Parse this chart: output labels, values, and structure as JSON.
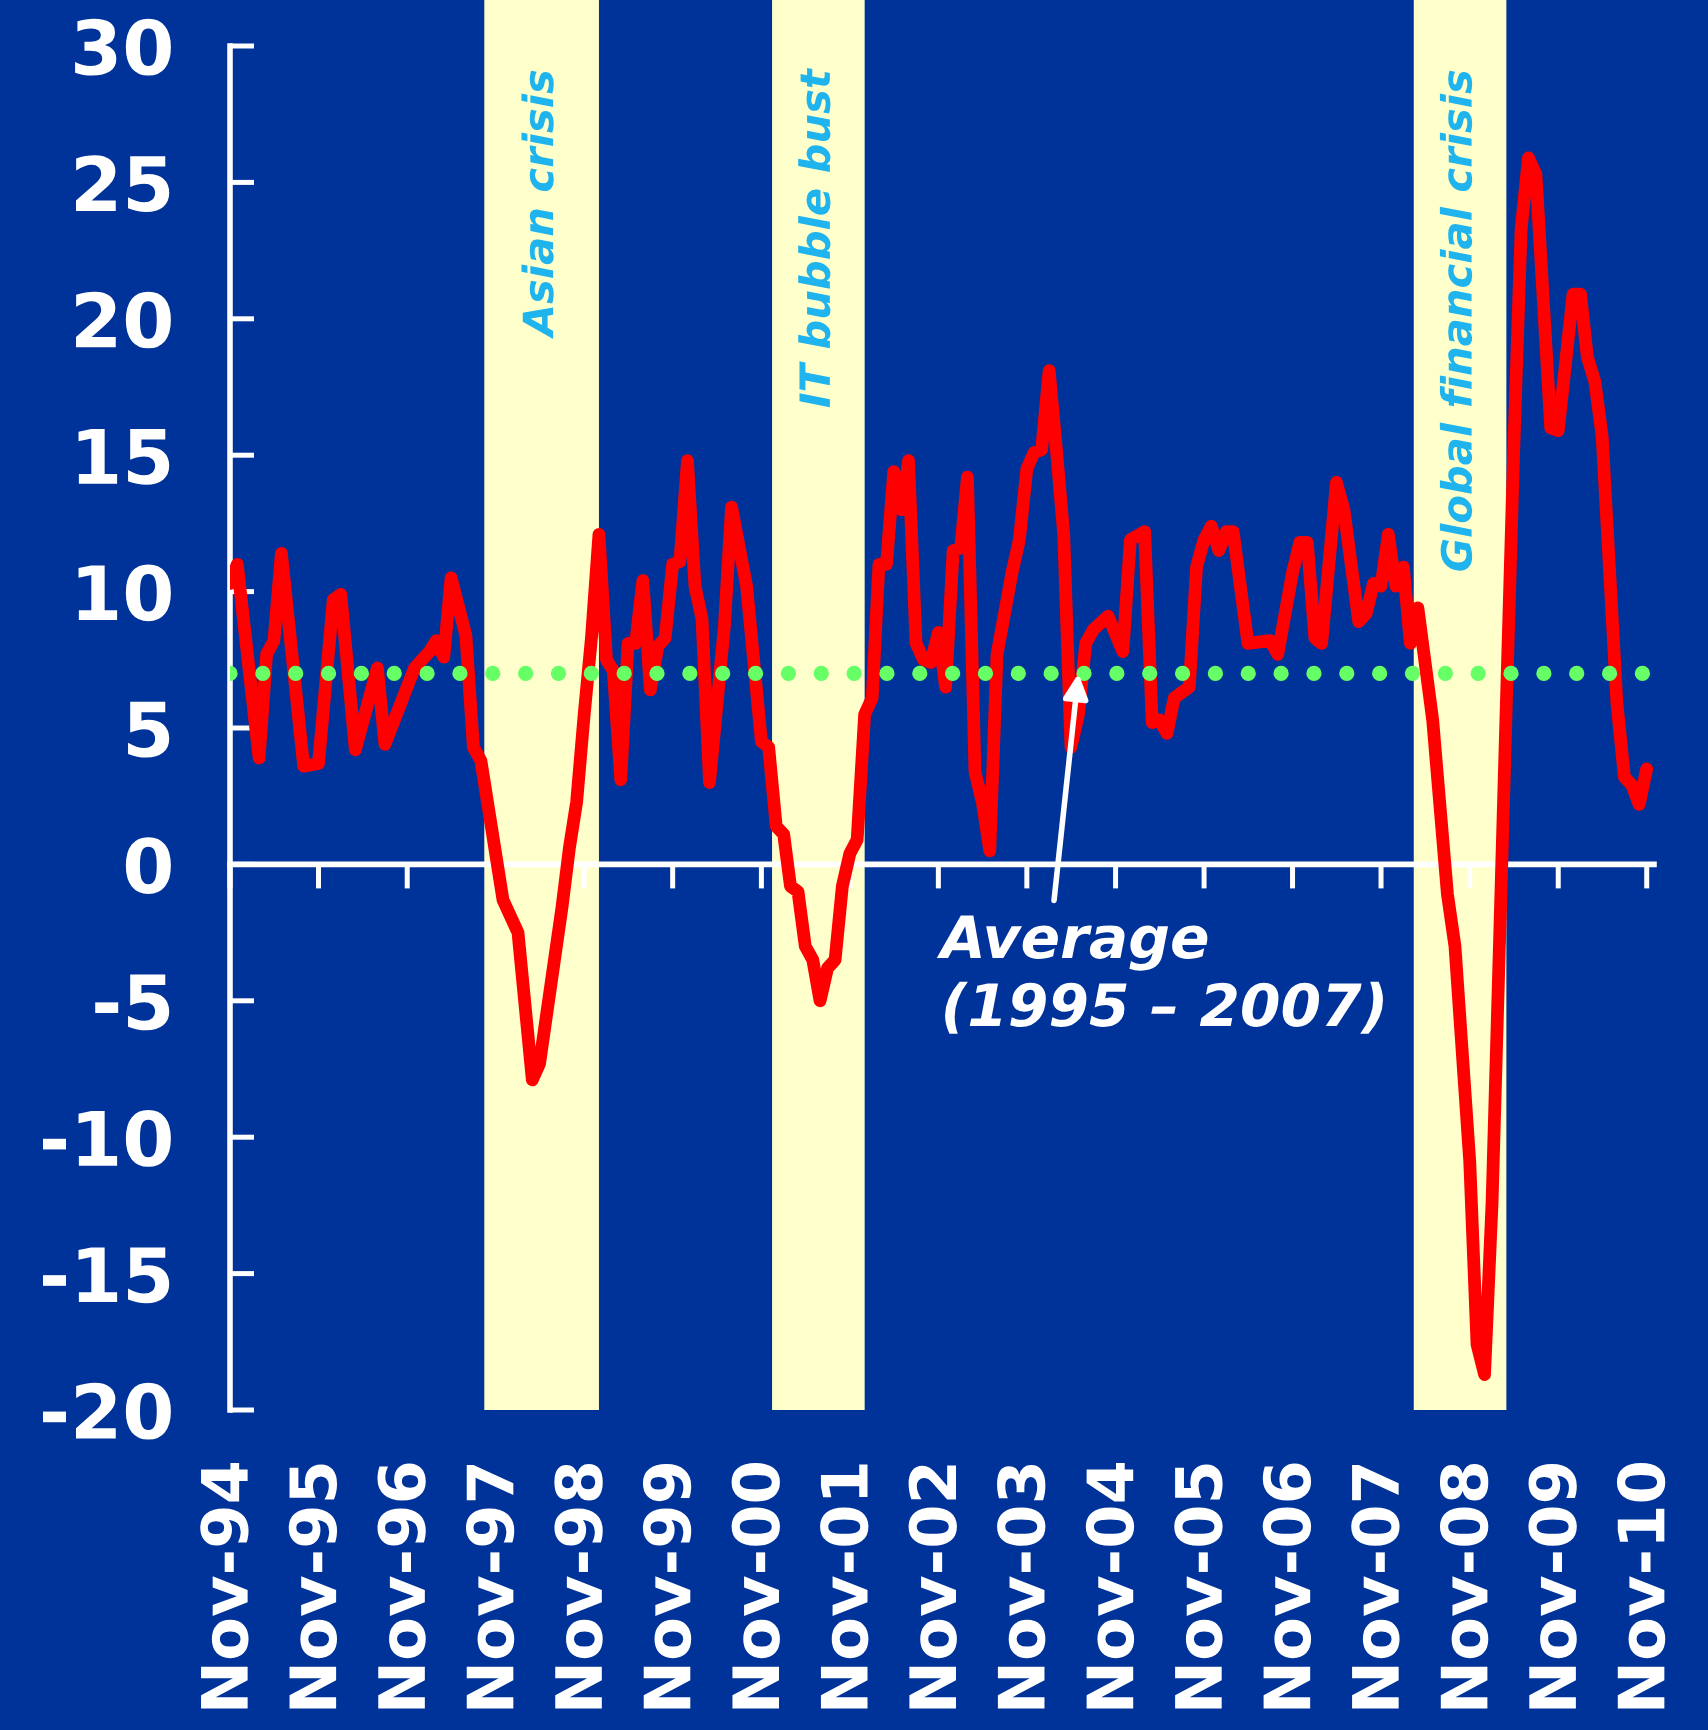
{
  "chart_data": {
    "type": "line",
    "x": [
      "1994-11",
      "1994-12",
      "1995-03",
      "1995-04",
      "1995-05",
      "1995-06",
      "1995-09",
      "1995-11",
      "1996-01",
      "1996-02",
      "1996-04",
      "1996-07",
      "1996-08",
      "1996-12",
      "1997-02",
      "1997-03",
      "1997-04",
      "1997-05",
      "1997-07",
      "1997-08",
      "1997-09",
      "1997-12",
      "1998-02",
      "1998-04",
      "1998-05",
      "1998-08",
      "1998-09",
      "1998-10",
      "1998-11",
      "1998-12",
      "1999-01",
      "1999-02",
      "1999-03",
      "1999-04",
      "1999-05",
      "1999-06",
      "1999-07",
      "1999-08",
      "1999-09",
      "1999-10",
      "1999-11",
      "1999-12",
      "2000-01",
      "2000-02",
      "2000-03",
      "2000-04",
      "2000-06",
      "2000-07",
      "2000-09",
      "2000-11",
      "2000-12",
      "2001-01",
      "2001-02",
      "2001-03",
      "2001-04",
      "2001-05",
      "2001-06",
      "2001-07",
      "2001-08",
      "2001-09",
      "2001-10",
      "2001-11",
      "2001-12",
      "2002-01",
      "2002-02",
      "2002-03",
      "2002-04",
      "2002-05",
      "2002-06",
      "2002-07",
      "2002-08",
      "2002-09",
      "2002-10",
      "2002-11",
      "2002-12",
      "2003-01",
      "2003-02",
      "2003-03",
      "2003-04",
      "2003-05",
      "2003-06",
      "2003-07",
      "2003-09",
      "2003-10",
      "2003-11",
      "2003-12",
      "2004-01",
      "2004-02",
      "2004-03",
      "2004-04",
      "2004-05",
      "2004-06",
      "2004-07",
      "2004-08",
      "2004-10",
      "2004-12",
      "2005-01",
      "2005-03",
      "2005-04",
      "2005-05",
      "2005-06",
      "2005-07",
      "2005-09",
      "2005-10",
      "2005-11",
      "2005-12",
      "2006-01",
      "2006-02",
      "2006-03",
      "2006-05",
      "2006-08",
      "2006-09",
      "2006-11",
      "2006-12",
      "2007-01",
      "2007-02",
      "2007-03",
      "2007-05",
      "2007-06",
      "2007-08",
      "2007-09",
      "2007-10",
      "2007-11",
      "2007-12",
      "2008-01",
      "2008-02",
      "2008-03",
      "2008-04",
      "2008-06",
      "2008-08",
      "2008-09",
      "2008-11",
      "2008-12",
      "2009-01",
      "2009-02",
      "2009-04",
      "2009-05",
      "2009-06",
      "2009-07",
      "2009-08",
      "2009-10",
      "2009-11",
      "2010-01",
      "2010-02",
      "2010-03",
      "2010-04",
      "2010-05",
      "2010-07",
      "2010-08",
      "2010-09",
      "2010-10",
      "2010-11"
    ],
    "series": [
      {
        "color": "#ff0000",
        "values": [
          10.3,
          11.0,
          3.9,
          7.7,
          8.2,
          11.4,
          3.6,
          3.7,
          9.7,
          9.9,
          4.2,
          7.2,
          4.4,
          7.2,
          7.8,
          8.2,
          7.6,
          10.5,
          8.4,
          4.3,
          3.8,
          -1.3,
          -2.5,
          -7.9,
          -7.3,
          -1.6,
          0.6,
          2.3,
          5.5,
          8.3,
          12.1,
          7.5,
          7.1,
          3.1,
          8.1,
          8.1,
          10.4,
          6.4,
          8.0,
          8.3,
          11.0,
          11.1,
          14.8,
          10.2,
          9.0,
          3.0,
          8.7,
          13.1,
          10.2,
          4.5,
          4.3,
          1.4,
          1.1,
          -0.8,
          -1.0,
          -3.0,
          -3.5,
          -5.0,
          -3.8,
          -3.5,
          -0.8,
          0.4,
          0.9,
          5.5,
          6.1,
          11.0,
          11.0,
          14.4,
          13.0,
          14.8,
          8.1,
          7.5,
          7.4,
          8.5,
          6.5,
          11.5,
          11.6,
          14.2,
          3.4,
          2.3,
          0.5,
          7.7,
          10.7,
          11.9,
          14.5,
          15.1,
          15.2,
          18.1,
          15.3,
          12.1,
          4.3,
          5.5,
          8.1,
          8.6,
          9.1,
          7.8,
          11.9,
          12.2,
          5.2,
          5.3,
          4.8,
          6.1,
          6.5,
          10.9,
          11.9,
          12.4,
          11.5,
          12.2,
          12.2,
          8.1,
          8.2,
          7.7,
          10.7,
          11.8,
          11.8,
          8.3,
          8.1,
          14.0,
          13.0,
          8.9,
          9.2,
          10.3,
          10.2,
          12.1,
          10.2,
          10.9,
          8.1,
          9.4,
          5.3,
          -1.1,
          -3.0,
          -10.9,
          -17.6,
          -18.7,
          -12.4,
          5.9,
          15.1,
          23.3,
          25.9,
          25.3,
          16.0,
          15.9,
          20.9,
          20.9,
          18.6,
          17.7,
          15.7,
          5.9,
          3.2,
          2.9,
          2.2,
          3.5
        ]
      }
    ],
    "xlim": [
      "1994-11",
      "2010-12"
    ],
    "xticks": [
      {
        "value": "1994-11",
        "label": "Nov-94"
      },
      {
        "value": "1995-11",
        "label": "Nov-95"
      },
      {
        "value": "1996-11",
        "label": "Nov-96"
      },
      {
        "value": "1997-11",
        "label": "Nov-97"
      },
      {
        "value": "1998-11",
        "label": "Nov-98"
      },
      {
        "value": "1999-11",
        "label": "Nov-99"
      },
      {
        "value": "2000-11",
        "label": "Nov-00"
      },
      {
        "value": "2001-11",
        "label": "Nov-01"
      },
      {
        "value": "2002-11",
        "label": "Nov-02"
      },
      {
        "value": "2003-11",
        "label": "Nov-03"
      },
      {
        "value": "2004-11",
        "label": "Nov-04"
      },
      {
        "value": "2005-11",
        "label": "Nov-05"
      },
      {
        "value": "2006-11",
        "label": "Nov-06"
      },
      {
        "value": "2007-11",
        "label": "Nov-07"
      },
      {
        "value": "2008-11",
        "label": "Nov-08"
      },
      {
        "value": "2009-11",
        "label": "Nov-09"
      },
      {
        "value": "2010-11",
        "label": "Nov-10"
      }
    ],
    "ylim": [
      -20,
      30
    ],
    "yticks": [
      -20,
      -15,
      -10,
      -5,
      0,
      5,
      10,
      15,
      20,
      25,
      30
    ],
    "ref_lines": [
      {
        "axis": "y",
        "value": 7,
        "color": "#66ff66",
        "line_style": "dotted"
      }
    ],
    "bands": [
      {
        "axis": "x",
        "from": "1997-09-15",
        "to": "1999-01",
        "label": "Asian crisis",
        "color": "#ffffcc"
      },
      {
        "axis": "x",
        "from": "2000-12-15",
        "to": "2002-01",
        "label": "IT bubble bust",
        "color": "#ffffcc"
      },
      {
        "axis": "x",
        "from": "2008-03-15",
        "to": "2009-04",
        "label": "Global financial crisis",
        "color": "#ffffcc"
      }
    ],
    "annotations": [
      {
        "text": "Average\n(1995 – 2007)",
        "x": "2004-06",
        "y": 7
      }
    ]
  }
}
